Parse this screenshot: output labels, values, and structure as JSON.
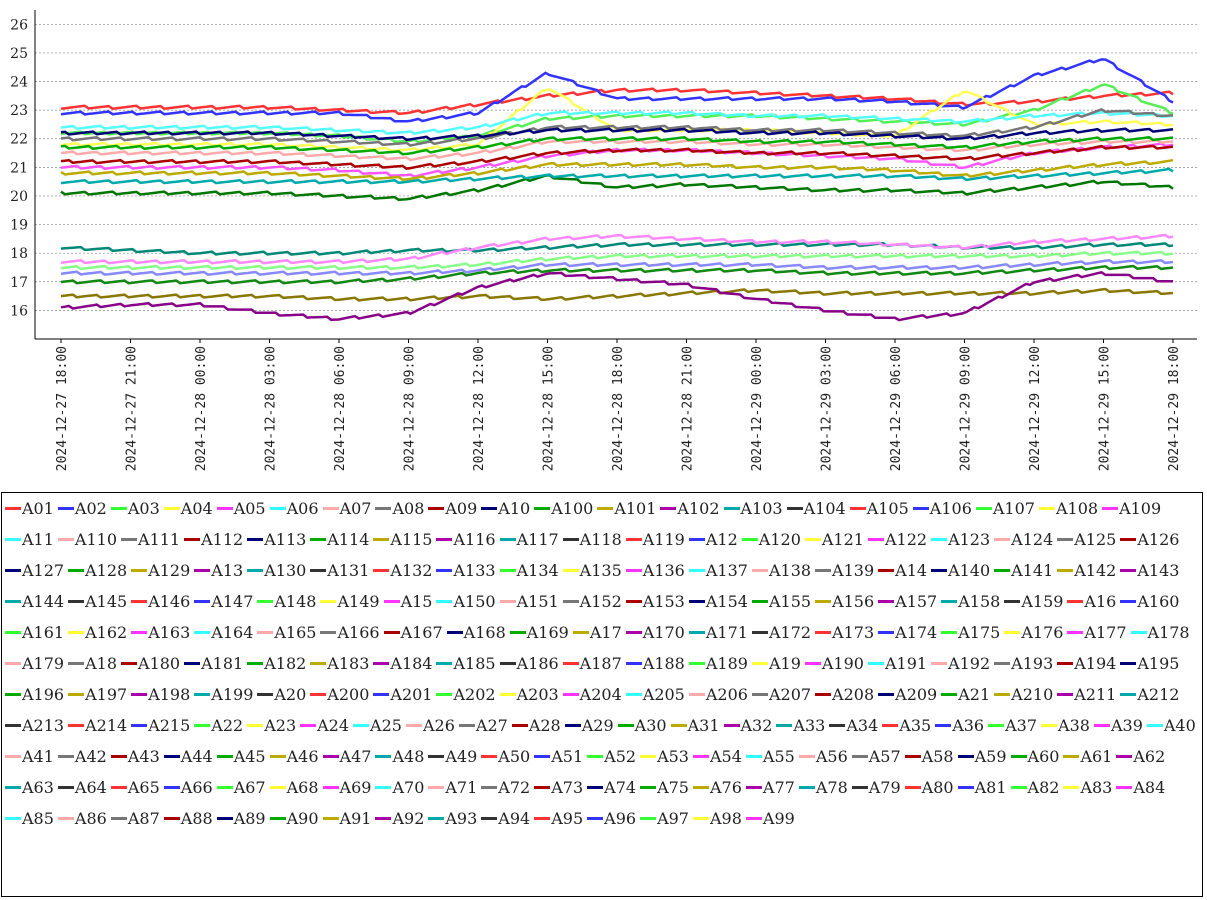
{
  "chart_data": {
    "type": "line",
    "title": "",
    "xlabel": "",
    "ylabel": "",
    "ylim": [
      15,
      26.5
    ],
    "yticks": [
      16,
      17,
      18,
      19,
      20,
      21,
      22,
      23,
      24,
      25,
      26
    ],
    "grid": true,
    "legend_position": "bottom",
    "x_tick_labels": [
      "2024-12-27 18:00",
      "2024-12-27 21:00",
      "2024-12-28 00:00",
      "2024-12-28 03:00",
      "2024-12-28 06:00",
      "2024-12-28 09:00",
      "2024-12-28 12:00",
      "2024-12-28 15:00",
      "2024-12-28 18:00",
      "2024-12-28 21:00",
      "2024-12-29 00:00",
      "2024-12-29 03:00",
      "2024-12-29 06:00",
      "2024-12-29 09:00",
      "2024-12-29 12:00",
      "2024-12-29 15:00",
      "2024-12-29 18:00"
    ],
    "sampled_x": [
      "2024-12-27 18:00",
      "2024-12-27 21:00",
      "2024-12-28 00:00",
      "2024-12-28 03:00",
      "2024-12-28 06:00",
      "2024-12-28 09:00",
      "2024-12-28 12:00",
      "2024-12-28 15:00",
      "2024-12-28 18:00",
      "2024-12-28 21:00",
      "2024-12-29 00:00",
      "2024-12-29 03:00",
      "2024-12-29 06:00",
      "2024-12-29 09:00",
      "2024-12-29 12:00",
      "2024-12-29 15:00",
      "2024-12-29 18:00"
    ],
    "palette": [
      "#ff3333",
      "#3333ff",
      "#33ff33",
      "#ffff33",
      "#ff33ff",
      "#33ffff",
      "#ffaaaa",
      "#777777",
      "#aa0000",
      "#000077",
      "#00aa00",
      "#bbaa00",
      "#aa00aa",
      "#00aaaa",
      "#333333"
    ],
    "series": [
      {
        "name": "A01",
        "values": [
          23.1,
          23.1,
          23.1,
          23.1,
          23.0,
          22.9,
          23.2,
          23.5,
          23.7,
          23.7,
          23.6,
          23.5,
          23.4,
          23.2,
          23.3,
          23.5,
          23.6
        ]
      },
      {
        "name": "A02",
        "values": [
          22.9,
          22.9,
          22.9,
          22.9,
          22.9,
          22.6,
          22.9,
          24.3,
          23.4,
          23.4,
          23.4,
          23.4,
          23.3,
          23.1,
          24.2,
          24.8,
          23.3
        ]
      },
      {
        "name": "A03",
        "values": [
          22.2,
          22.2,
          22.2,
          22.2,
          22.1,
          21.9,
          22.1,
          22.7,
          22.8,
          22.8,
          22.8,
          22.7,
          22.6,
          22.5,
          23.0,
          23.9,
          22.9
        ]
      },
      {
        "name": "A04",
        "values": [
          21.8,
          21.8,
          21.8,
          21.8,
          21.7,
          21.6,
          21.8,
          23.8,
          22.3,
          22.3,
          22.3,
          22.2,
          22.1,
          23.7,
          22.5,
          22.6,
          22.5
        ]
      },
      {
        "name": "A05",
        "values": [
          21.0,
          21.0,
          21.0,
          21.0,
          20.9,
          20.7,
          21.0,
          21.4,
          21.6,
          21.6,
          21.5,
          21.4,
          21.3,
          21.0,
          21.5,
          21.7,
          21.8
        ]
      },
      {
        "name": "A06",
        "values": [
          22.4,
          22.4,
          22.4,
          22.4,
          22.3,
          22.2,
          22.4,
          22.9,
          22.9,
          22.9,
          22.8,
          22.8,
          22.7,
          22.6,
          22.8,
          22.9,
          22.8
        ]
      },
      {
        "name": "A07",
        "values": [
          21.5,
          21.5,
          21.5,
          21.5,
          21.4,
          21.3,
          21.5,
          21.9,
          21.9,
          21.9,
          21.8,
          21.8,
          21.7,
          21.6,
          21.8,
          21.9,
          21.9
        ]
      },
      {
        "name": "A08",
        "values": [
          22.0,
          22.0,
          22.0,
          22.0,
          21.9,
          21.8,
          22.0,
          22.4,
          22.4,
          22.4,
          22.3,
          22.3,
          22.2,
          22.1,
          22.4,
          23.0,
          22.8
        ]
      },
      {
        "name": "A09",
        "values": [
          21.2,
          21.2,
          21.2,
          21.2,
          21.1,
          21.0,
          21.2,
          21.5,
          21.6,
          21.6,
          21.5,
          21.5,
          21.4,
          21.3,
          21.5,
          21.7,
          21.7
        ]
      },
      {
        "name": "A10",
        "values": [
          22.2,
          22.2,
          22.2,
          22.2,
          22.1,
          22.0,
          22.1,
          22.3,
          22.3,
          22.3,
          22.2,
          22.2,
          22.1,
          22.0,
          22.2,
          22.3,
          22.3
        ]
      },
      {
        "name": "A11",
        "values": [
          21.7,
          21.7,
          21.7,
          21.7,
          21.6,
          21.5,
          21.7,
          22.0,
          22.0,
          22.0,
          21.9,
          21.9,
          21.8,
          21.7,
          21.9,
          22.0,
          22.0
        ]
      },
      {
        "name": "A12",
        "values": [
          20.8,
          20.8,
          20.8,
          20.8,
          20.7,
          20.6,
          20.8,
          21.1,
          21.1,
          21.1,
          21.0,
          21.0,
          20.9,
          20.7,
          20.9,
          21.1,
          21.2
        ]
      },
      {
        "name": "A13",
        "values": [
          20.1,
          20.1,
          20.1,
          20.1,
          20.0,
          19.9,
          20.2,
          20.7,
          20.3,
          20.4,
          20.3,
          20.2,
          20.2,
          20.1,
          20.3,
          20.5,
          20.3
        ]
      },
      {
        "name": "A14",
        "values": [
          20.5,
          20.5,
          20.5,
          20.5,
          20.5,
          20.5,
          20.6,
          20.7,
          20.7,
          20.7,
          20.7,
          20.7,
          20.7,
          20.6,
          20.7,
          20.8,
          20.9
        ]
      },
      {
        "name": "A15",
        "values": [
          18.2,
          18.1,
          18.0,
          18.0,
          18.0,
          18.1,
          18.1,
          18.2,
          18.3,
          18.3,
          18.3,
          18.3,
          18.3,
          18.2,
          18.2,
          18.3,
          18.3
        ]
      },
      {
        "name": "A16",
        "values": [
          17.7,
          17.7,
          17.7,
          17.7,
          17.7,
          17.8,
          18.2,
          18.5,
          18.6,
          18.5,
          18.4,
          18.4,
          18.3,
          18.2,
          18.4,
          18.5,
          18.6
        ]
      },
      {
        "name": "A17",
        "values": [
          17.5,
          17.5,
          17.5,
          17.5,
          17.5,
          17.5,
          17.6,
          17.8,
          17.9,
          17.9,
          17.9,
          17.9,
          17.9,
          17.9,
          17.9,
          18.0,
          18.0
        ]
      },
      {
        "name": "A18",
        "values": [
          17.3,
          17.3,
          17.3,
          17.3,
          17.3,
          17.3,
          17.4,
          17.6,
          17.6,
          17.6,
          17.6,
          17.5,
          17.5,
          17.5,
          17.6,
          17.7,
          17.7
        ]
      },
      {
        "name": "A19",
        "values": [
          17.0,
          17.0,
          17.0,
          17.0,
          17.0,
          17.1,
          17.3,
          17.4,
          17.4,
          17.4,
          17.4,
          17.3,
          17.3,
          17.3,
          17.4,
          17.5,
          17.5
        ]
      },
      {
        "name": "A20",
        "values": [
          16.5,
          16.5,
          16.5,
          16.5,
          16.4,
          16.4,
          16.5,
          16.4,
          16.5,
          16.6,
          16.7,
          16.6,
          16.6,
          16.6,
          16.6,
          16.7,
          16.6
        ]
      },
      {
        "name": "A21",
        "values": [
          16.1,
          16.2,
          16.2,
          15.9,
          15.7,
          15.9,
          16.8,
          17.3,
          17.1,
          16.9,
          16.4,
          16.0,
          15.7,
          15.9,
          17.0,
          17.3,
          17.0
        ]
      }
    ]
  },
  "legend": {
    "items": [
      "A01",
      "A02",
      "A03",
      "A04",
      "A05",
      "A06",
      "A07",
      "A08",
      "A09",
      "A10",
      "A100",
      "A101",
      "A102",
      "A103",
      "A104",
      "A105",
      "A106",
      "A107",
      "A108",
      "A109",
      "A11",
      "A110",
      "A111",
      "A112",
      "A113",
      "A114",
      "A115",
      "A116",
      "A117",
      "A118",
      "A119",
      "A12",
      "A120",
      "A121",
      "A122",
      "A123",
      "A124",
      "A125",
      "A126",
      "A127",
      "A128",
      "A129",
      "A13",
      "A130",
      "A131",
      "A132",
      "A133",
      "A134",
      "A135",
      "A136",
      "A137",
      "A138",
      "A139",
      "A14",
      "A140",
      "A141",
      "A142",
      "A143",
      "A144",
      "A145",
      "A146",
      "A147",
      "A148",
      "A149",
      "A15",
      "A150",
      "A151",
      "A152",
      "A153",
      "A154",
      "A155",
      "A156",
      "A157",
      "A158",
      "A159",
      "A16",
      "A160",
      "A161",
      "A162",
      "A163",
      "A164",
      "A165",
      "A166",
      "A167",
      "A168",
      "A169",
      "A17",
      "A170",
      "A171",
      "A172",
      "A173",
      "A174",
      "A175",
      "A176",
      "A177",
      "A178",
      "A179",
      "A18",
      "A180",
      "A181",
      "A182",
      "A183",
      "A184",
      "A185",
      "A186",
      "A187",
      "A188",
      "A189",
      "A19",
      "A190",
      "A191",
      "A192",
      "A193",
      "A194",
      "A195",
      "A196",
      "A197",
      "A198",
      "A199",
      "A20",
      "A200",
      "A201",
      "A202",
      "A203",
      "A204",
      "A205",
      "A206",
      "A207",
      "A208",
      "A209",
      "A21",
      "A210",
      "A211",
      "A212",
      "A213",
      "A214",
      "A215",
      "A22",
      "A23",
      "A24",
      "A25",
      "A26",
      "A27",
      "A28",
      "A29",
      "A30",
      "A31",
      "A32",
      "A33",
      "A34",
      "A35",
      "A36",
      "A37",
      "A38",
      "A39",
      "A40",
      "A41",
      "A42",
      "A43",
      "A44",
      "A45",
      "A46",
      "A47",
      "A48",
      "A49",
      "A50",
      "A51",
      "A52",
      "A53",
      "A54",
      "A55",
      "A56",
      "A57",
      "A58",
      "A59",
      "A60",
      "A61",
      "A62",
      "A63",
      "A64",
      "A65",
      "A66",
      "A67",
      "A68",
      "A69",
      "A70",
      "A71",
      "A72",
      "A73",
      "A74",
      "A75",
      "A76",
      "A77",
      "A78",
      "A79",
      "A80",
      "A81",
      "A82",
      "A83",
      "A84",
      "A85",
      "A86",
      "A87",
      "A88",
      "A89",
      "A90",
      "A91",
      "A92",
      "A93",
      "A94",
      "A95",
      "A96",
      "A97",
      "A98",
      "A99"
    ]
  }
}
